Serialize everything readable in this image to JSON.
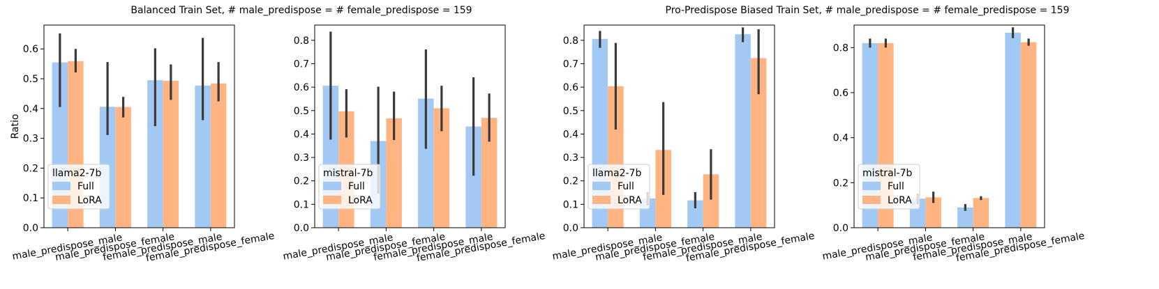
{
  "suptitles": [
    "Balanced Train Set, # male_predispose = # female_predispose = 159",
    "Pro-Predispose Biased Train Set, # male_predispose = # female_predispose = 159"
  ],
  "colors": {
    "full": "#a1c9f4",
    "lora": "#ffb482",
    "error_bar": "#3a3a3a"
  },
  "chart_data": [
    {
      "type": "bar",
      "ylabel": "Ratio",
      "ylim": [
        0,
        0.68
      ],
      "yticks": [
        0.0,
        0.1,
        0.2,
        0.3,
        0.4,
        0.5,
        0.6
      ],
      "ytick_labels": [
        "0.0",
        "0.1",
        "0.2",
        "0.3",
        "0.4",
        "0.5",
        "0.6"
      ],
      "categories": [
        "male_predispose_male",
        "male_predispose_female",
        "female_predispose_male",
        "female_predispose_female"
      ],
      "legend": {
        "title": "llama2-7b",
        "placement": "lower-left"
      },
      "series": [
        {
          "name": "Full",
          "values": [
            0.555,
            0.406,
            0.495,
            0.477
          ],
          "err_low": [
            0.405,
            0.311,
            0.341,
            0.361
          ],
          "err_high": [
            0.652,
            0.556,
            0.602,
            0.637
          ]
        },
        {
          "name": "LoRA",
          "values": [
            0.559,
            0.405,
            0.493,
            0.484
          ],
          "err_low": [
            0.521,
            0.37,
            0.429,
            0.424
          ],
          "err_high": [
            0.6,
            0.439,
            0.548,
            0.556
          ]
        }
      ]
    },
    {
      "type": "bar",
      "ylabel": "",
      "ylim": [
        0,
        0.865
      ],
      "yticks": [
        0.0,
        0.1,
        0.2,
        0.3,
        0.4,
        0.5,
        0.6,
        0.7,
        0.8
      ],
      "ytick_labels": [
        "0.0",
        "0.1",
        "0.2",
        "0.3",
        "0.4",
        "0.5",
        "0.6",
        "0.7",
        "0.8"
      ],
      "categories": [
        "male_predispose_male",
        "male_predispose_female",
        "female_predispose_male",
        "female_predispose_female"
      ],
      "legend": {
        "title": "mistral-7b",
        "placement": "lower-left"
      },
      "series": [
        {
          "name": "Full",
          "values": [
            0.606,
            0.37,
            0.551,
            0.432
          ],
          "err_low": [
            0.376,
            0.146,
            0.337,
            0.222
          ],
          "err_high": [
            0.837,
            0.602,
            0.761,
            0.642
          ]
        },
        {
          "name": "LoRA",
          "values": [
            0.497,
            0.467,
            0.51,
            0.469
          ],
          "err_low": [
            0.385,
            0.374,
            0.412,
            0.367
          ],
          "err_high": [
            0.591,
            0.581,
            0.606,
            0.573
          ]
        }
      ]
    },
    {
      "type": "bar",
      "ylabel": "",
      "ylim": [
        0,
        0.865
      ],
      "yticks": [
        0.0,
        0.1,
        0.2,
        0.3,
        0.4,
        0.5,
        0.6,
        0.7,
        0.8
      ],
      "ytick_labels": [
        "0.0",
        "0.1",
        "0.2",
        "0.3",
        "0.4",
        "0.5",
        "0.6",
        "0.7",
        "0.8"
      ],
      "categories": [
        "male_predispose_male",
        "male_predispose_female",
        "female_predispose_male",
        "female_predispose_female"
      ],
      "legend": {
        "title": "llama2-7b",
        "placement": "lower-left"
      },
      "series": [
        {
          "name": "Full",
          "values": [
            0.806,
            0.125,
            0.117,
            0.826
          ],
          "err_low": [
            0.768,
            0.095,
            0.083,
            0.792
          ],
          "err_high": [
            0.84,
            0.153,
            0.152,
            0.855
          ]
        },
        {
          "name": "LoRA",
          "values": [
            0.604,
            0.332,
            0.228,
            0.724
          ],
          "err_low": [
            0.419,
            0.14,
            0.12,
            0.57
          ],
          "err_high": [
            0.789,
            0.536,
            0.335,
            0.847
          ]
        }
      ]
    },
    {
      "type": "bar",
      "ylabel": "",
      "ylim": [
        0,
        0.9
      ],
      "yticks": [
        0.0,
        0.2,
        0.4,
        0.6,
        0.8
      ],
      "ytick_labels": [
        "0.0",
        "0.2",
        "0.4",
        "0.6",
        "0.8"
      ],
      "categories": [
        "male_predispose_male",
        "male_predispose_female",
        "female_predispose_male",
        "female_predispose_female"
      ],
      "legend": {
        "title": "mistral-7b",
        "placement": "lower-left"
      },
      "series": [
        {
          "name": "Full",
          "values": [
            0.82,
            0.129,
            0.09,
            0.866
          ],
          "err_low": [
            0.8,
            0.105,
            0.075,
            0.842
          ],
          "err_high": [
            0.84,
            0.152,
            0.105,
            0.89
          ]
        },
        {
          "name": "LoRA",
          "values": [
            0.82,
            0.135,
            0.132,
            0.824
          ],
          "err_low": [
            0.8,
            0.11,
            0.123,
            0.808
          ],
          "err_high": [
            0.84,
            0.16,
            0.14,
            0.84
          ]
        }
      ]
    }
  ]
}
